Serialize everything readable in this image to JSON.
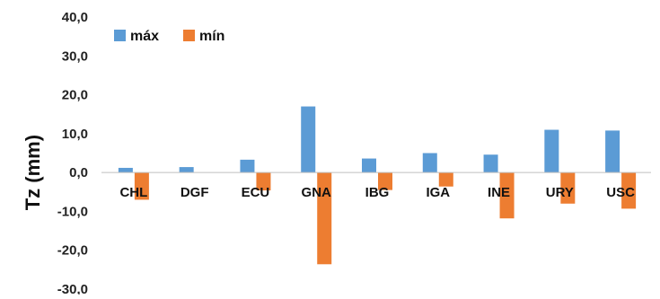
{
  "chart_data": {
    "type": "bar",
    "ylabel": "Tz (mm)",
    "xlabel": "",
    "ylim": [
      -30,
      40
    ],
    "yticks": [
      "40,0",
      "30,0",
      "20,0",
      "10,0",
      "0,0",
      "-10,0",
      "-20,0",
      "-30,0"
    ],
    "ytick_values": [
      40,
      30,
      20,
      10,
      0,
      -10,
      -20,
      -30
    ],
    "categories": [
      "CHL",
      "DGF",
      "ECU",
      "GNA",
      "IBG",
      "IGA",
      "INE",
      "URY",
      "USC"
    ],
    "series": [
      {
        "name": "máx",
        "color": "#5b9bd5",
        "values": [
          1.2,
          1.4,
          3.3,
          17.0,
          3.6,
          5.0,
          4.6,
          11.0,
          10.8
        ]
      },
      {
        "name": "mín",
        "color": "#ed7d31",
        "values": [
          -7.0,
          0.0,
          -4.6,
          -23.6,
          -4.5,
          -3.6,
          -11.8,
          -8.0,
          -9.3
        ]
      }
    ],
    "legend": "top-left",
    "grid": false
  }
}
